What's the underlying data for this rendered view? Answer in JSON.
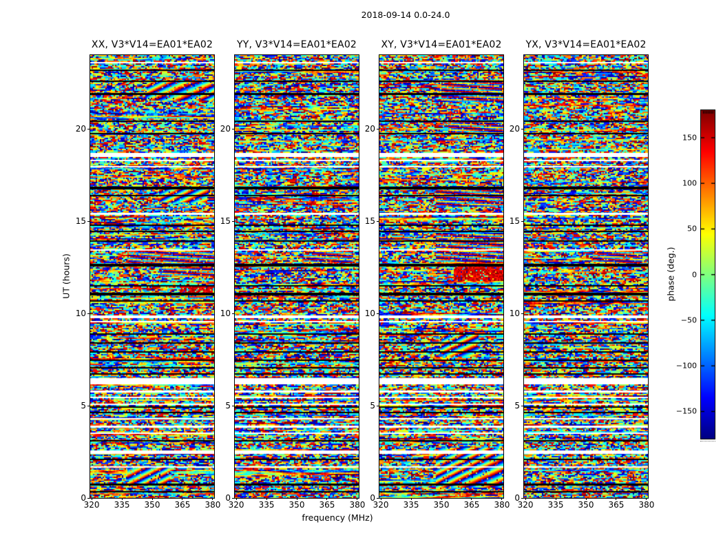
{
  "chart_data": {
    "type": "heatmap",
    "title": "2018-09-14 0.0-24.0",
    "xlabel": "frequency (MHz)",
    "ylabel": "UT (hours)",
    "xlim": [
      319.3,
      380.7
    ],
    "ylim": [
      0,
      24
    ],
    "xticks": [
      320,
      335,
      350,
      365,
      380
    ],
    "yticks": [
      0,
      5,
      10,
      15,
      20
    ],
    "grid": false,
    "panels": [
      {
        "pol": "XX",
        "title": "XX, V3*V14=EA01*EA02",
        "seed": 11
      },
      {
        "pol": "YY",
        "title": "YY, V3*V14=EA01*EA02",
        "seed": 22
      },
      {
        "pol": "XY",
        "title": "XY, V3*V14=EA01*EA02",
        "seed": 33
      },
      {
        "pol": "YX",
        "title": "YX, V3*V14=EA01*EA02",
        "seed": 44
      }
    ],
    "colorbar": {
      "label": "phase (deg.)",
      "colormap": "jet",
      "vmin": -180,
      "vmax": 180,
      "ticks": [
        150,
        100,
        50,
        0,
        -50,
        -100,
        -150
      ],
      "tick_labels": [
        "150",
        "100",
        "50",
        "0",
        "−50",
        "−100",
        "−150"
      ],
      "position": "right"
    },
    "values_description": "visibility phase (-180..180 deg) per frequency channel (x) and UT time sample (y); mostly decorrelated multicolor noise with flagged white time gaps, near-black low-amplitude rows, and localized fringe/stripe patterns",
    "white_bands": [
      [
        0.016,
        2
      ],
      [
        0.221,
        6
      ],
      [
        0.236,
        2
      ],
      [
        0.25,
        2
      ],
      [
        0.356,
        3
      ],
      [
        0.438,
        2
      ],
      [
        0.588,
        4
      ],
      [
        0.6,
        2
      ],
      [
        0.729,
        9
      ],
      [
        0.757,
        3
      ],
      [
        0.772,
        2
      ],
      [
        0.787,
        2
      ],
      [
        0.82,
        2
      ],
      [
        0.836,
        3
      ],
      [
        0.852,
        2
      ],
      [
        0.893,
        5
      ],
      [
        0.928,
        2
      ]
    ],
    "black_bands": [
      [
        0.033,
        2
      ],
      [
        0.058,
        2
      ],
      [
        0.086,
        3
      ],
      [
        0.148,
        2
      ],
      [
        0.176,
        2
      ],
      [
        0.297,
        4
      ],
      [
        0.316,
        2
      ],
      [
        0.382,
        2
      ],
      [
        0.397,
        2
      ],
      [
        0.418,
        2
      ],
      [
        0.472,
        4
      ],
      [
        0.519,
        2
      ],
      [
        0.536,
        4
      ],
      [
        0.554,
        2
      ],
      [
        0.629,
        2
      ],
      [
        0.648,
        2
      ],
      [
        0.668,
        2
      ],
      [
        0.688,
        2
      ],
      [
        0.704,
        2
      ],
      [
        0.718,
        2
      ],
      [
        0.793,
        2
      ],
      [
        0.806,
        2
      ],
      [
        0.869,
        2
      ],
      [
        0.912,
        2
      ],
      [
        0.968,
        3
      ],
      [
        0.984,
        2
      ]
    ],
    "fringe_regions": {
      "XX": [
        {
          "x0": 0.45,
          "x1": 1.0,
          "y0": 0.057,
          "y1": 0.1,
          "kind": "wave"
        },
        {
          "x0": 0.55,
          "x1": 0.95,
          "y0": 0.3,
          "y1": 0.332,
          "kind": "wave"
        },
        {
          "x0": 0.3,
          "x1": 1.0,
          "y0": 0.44,
          "y1": 0.47,
          "kind": "hstripe"
        },
        {
          "x0": 0.55,
          "x1": 1.0,
          "y0": 0.478,
          "y1": 0.5,
          "kind": "hstripe"
        },
        {
          "x0": 0.72,
          "x1": 0.98,
          "y0": 0.518,
          "y1": 0.538,
          "kind": "blob"
        },
        {
          "x0": 0.3,
          "x1": 0.65,
          "y0": 0.928,
          "y1": 0.965,
          "kind": "wave"
        }
      ],
      "YY": [
        {
          "x0": 0.55,
          "x1": 0.95,
          "y0": 0.44,
          "y1": 0.468,
          "kind": "hstripe"
        }
      ],
      "XY": [
        {
          "x0": 0.5,
          "x1": 1.0,
          "y0": 0.055,
          "y1": 0.105,
          "kind": "hstripe"
        },
        {
          "x0": 0.55,
          "x1": 1.0,
          "y0": 0.145,
          "y1": 0.175,
          "kind": "hstripe"
        },
        {
          "x0": 0.45,
          "x1": 1.0,
          "y0": 0.298,
          "y1": 0.34,
          "kind": "hstripe"
        },
        {
          "x0": 0.45,
          "x1": 1.0,
          "y0": 0.4,
          "y1": 0.468,
          "kind": "hstripe"
        },
        {
          "x0": 0.6,
          "x1": 1.0,
          "y0": 0.475,
          "y1": 0.51,
          "kind": "blob"
        },
        {
          "x0": 0.5,
          "x1": 0.8,
          "y0": 0.63,
          "y1": 0.68,
          "kind": "wave"
        },
        {
          "x0": 0.45,
          "x1": 1.0,
          "y0": 0.885,
          "y1": 0.975,
          "kind": "wave"
        }
      ],
      "YX": [
        {
          "x0": 0.55,
          "x1": 0.95,
          "y0": 0.44,
          "y1": 0.468,
          "kind": "hstripe"
        }
      ]
    }
  }
}
